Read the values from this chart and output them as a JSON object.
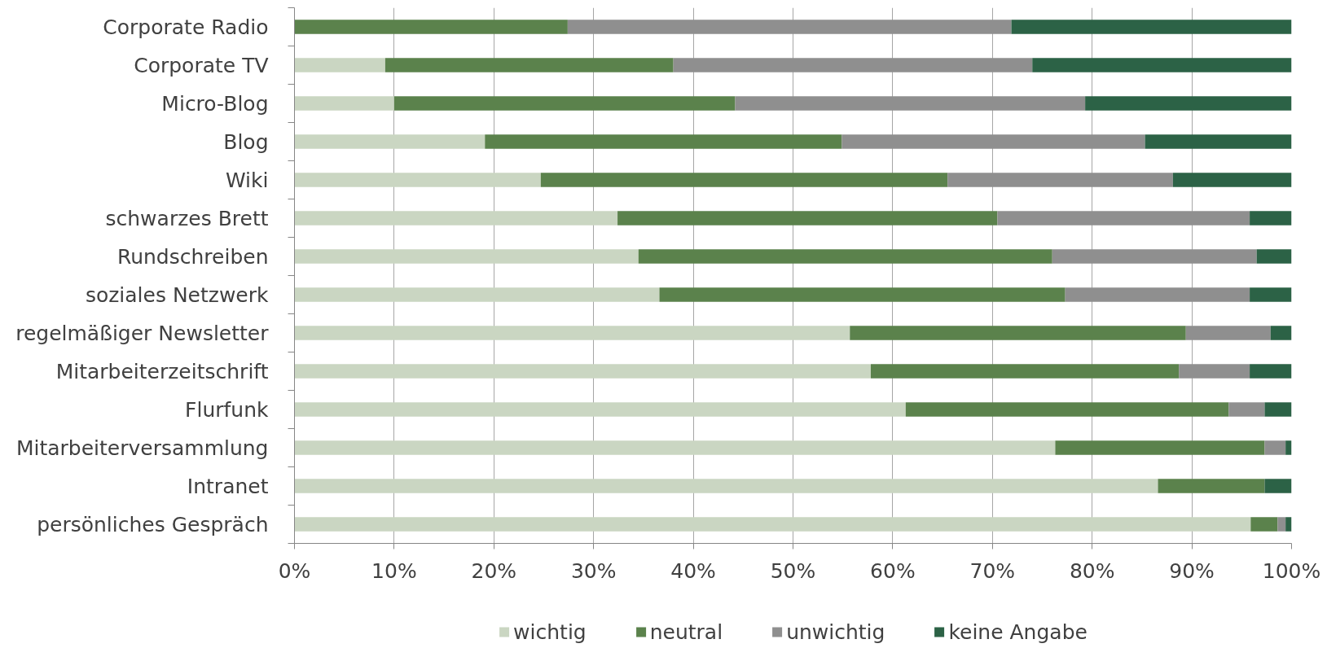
{
  "chart_data": {
    "type": "bar",
    "orientation": "horizontal",
    "stacked": true,
    "categories": [
      "Corporate Radio",
      "Corporate TV",
      "Micro-Blog",
      "Blog",
      "Wiki",
      "schwarzes Brett",
      "Rundschreiben",
      "soziales Netzwerk",
      "regelmäßiger Newsletter",
      "Mitarbeiterzeitschrift",
      "Flurfunk",
      "Mitarbeiterversammlung",
      "Intranet",
      "persönliches Gespräch"
    ],
    "series": [
      {
        "name": "wichtig",
        "color": "#cad6c2",
        "values": [
          0,
          9.1,
          10.0,
          19.1,
          24.7,
          32.4,
          34.5,
          36.6,
          55.7,
          57.8,
          61.3,
          76.3,
          86.6,
          95.9
        ]
      },
      {
        "name": "neutral",
        "color": "#5b824c",
        "values": [
          27.4,
          28.9,
          34.2,
          35.8,
          40.8,
          38.1,
          41.5,
          40.7,
          33.7,
          30.9,
          32.4,
          21.0,
          10.7,
          2.7
        ]
      },
      {
        "name": "unwichtig",
        "color": "#8f8f8f",
        "values": [
          44.5,
          36.0,
          35.1,
          30.4,
          22.6,
          25.3,
          20.5,
          18.5,
          8.5,
          7.1,
          3.6,
          2.1,
          0,
          0.8
        ]
      },
      {
        "name": "keine Angabe",
        "color": "#2c6246",
        "values": [
          28.1,
          26.0,
          20.7,
          14.7,
          11.9,
          4.2,
          3.5,
          4.2,
          2.1,
          4.2,
          2.7,
          0.6,
          2.7,
          0.6
        ]
      }
    ],
    "xlim": [
      0,
      100
    ],
    "xticks": [
      {
        "value": 0,
        "label": "0%"
      },
      {
        "value": 10,
        "label": "10%"
      },
      {
        "value": 20,
        "label": "20%"
      },
      {
        "value": 30,
        "label": "30%"
      },
      {
        "value": 40,
        "label": "40%"
      },
      {
        "value": 50,
        "label": "50%"
      },
      {
        "value": 60,
        "label": "60%"
      },
      {
        "value": 70,
        "label": "70%"
      },
      {
        "value": 80,
        "label": "80%"
      },
      {
        "value": 90,
        "label": "90%"
      },
      {
        "value": 100,
        "label": "100%"
      }
    ],
    "grid": "x",
    "legend": "bottom"
  }
}
